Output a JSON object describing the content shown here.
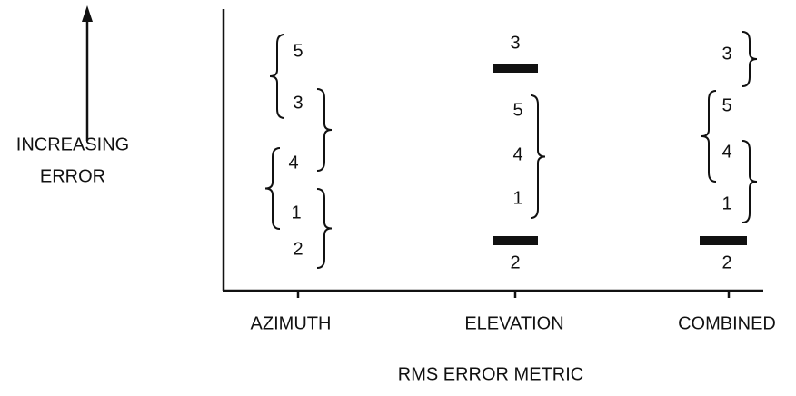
{
  "y_axis_label": [
    "INCREASING",
    "ERROR"
  ],
  "x_axis_label": "RMS ERROR METRIC",
  "columns": [
    {
      "label": "AZIMUTH",
      "items": [
        "5",
        "3",
        "4",
        "1",
        "2"
      ]
    },
    {
      "label": "ELEVATION",
      "items": [
        "3",
        "5",
        "4",
        "1",
        "2"
      ]
    },
    {
      "label": "COMBINED",
      "items": [
        "3",
        "5",
        "4",
        "1",
        "2"
      ]
    }
  ]
}
